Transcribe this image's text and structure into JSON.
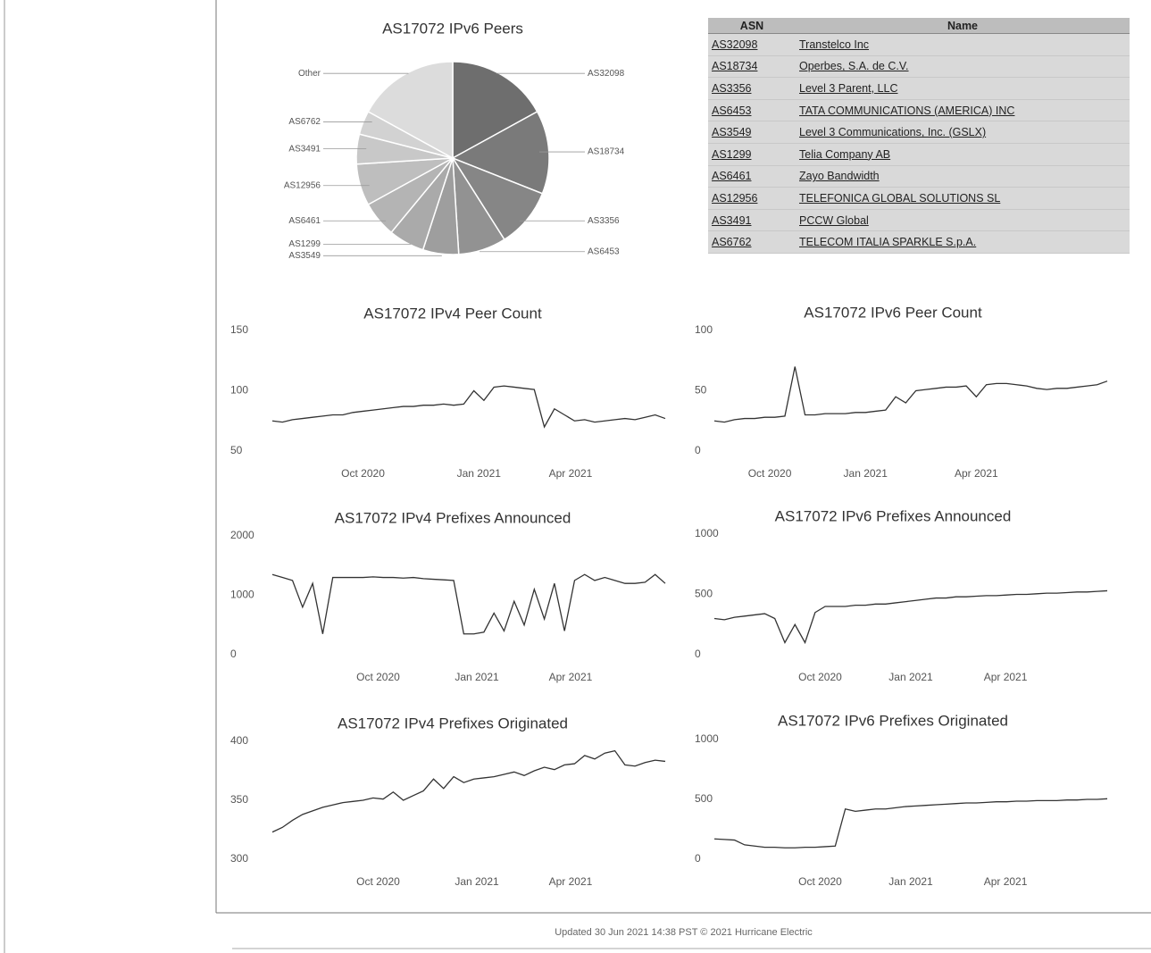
{
  "chart_data": [
    {
      "type": "pie",
      "title": "AS17072 IPv6 Peers",
      "categories": [
        "AS32098",
        "AS18734",
        "AS3356",
        "AS6453",
        "AS3549",
        "AS1299",
        "AS6461",
        "AS12956",
        "AS3491",
        "AS6762",
        "Other"
      ],
      "values": [
        17,
        14,
        10,
        8,
        6,
        6,
        6,
        7,
        5,
        4,
        17
      ],
      "colors": [
        "#6e6e6e",
        "#7a7a7a",
        "#868686",
        "#929292",
        "#9e9e9e",
        "#aaaaaa",
        "#b4b4b4",
        "#bebebe",
        "#c8c8c8",
        "#d2d2d2",
        "#dcdcdc"
      ]
    },
    {
      "type": "line",
      "title": "AS17072 IPv4 Peer Count",
      "color": "#333333",
      "x": [
        0,
        1,
        2,
        3,
        4,
        5,
        6,
        7,
        8,
        9,
        10,
        11,
        12,
        13,
        14,
        15,
        16,
        17,
        18,
        19,
        20,
        21,
        22,
        23,
        24,
        25,
        26,
        27,
        28,
        29,
        30,
        31,
        32,
        33,
        34,
        35,
        36,
        37,
        38,
        39
      ],
      "values": [
        75,
        74,
        76,
        77,
        78,
        79,
        80,
        80,
        82,
        83,
        84,
        85,
        86,
        87,
        87,
        88,
        88,
        89,
        88,
        89,
        100,
        92,
        103,
        104,
        103,
        102,
        101,
        70,
        85,
        80,
        75,
        76,
        74,
        75,
        76,
        77,
        76,
        78,
        80,
        77
      ],
      "xlim": [
        0,
        39
      ],
      "xticks": [
        {
          "value": 9,
          "label": "Oct 2020"
        },
        {
          "value": 20.5,
          "label": "Jan 2021"
        },
        {
          "value": 29.6,
          "label": "Apr 2021"
        }
      ],
      "ylim": [
        50,
        150
      ],
      "yticks": [
        50,
        100,
        150
      ]
    },
    {
      "type": "line",
      "title": "AS17072 IPv6 Peer Count",
      "color": "#333333",
      "x": [
        0,
        1,
        2,
        3,
        4,
        5,
        6,
        7,
        8,
        9,
        10,
        11,
        12,
        13,
        14,
        15,
        16,
        17,
        18,
        19,
        20,
        21,
        22,
        23,
        24,
        25,
        26,
        27,
        28,
        29,
        30,
        31,
        32,
        33,
        34,
        35,
        36,
        37,
        38,
        39
      ],
      "values": [
        25,
        24,
        26,
        27,
        27,
        28,
        28,
        29,
        70,
        30,
        30,
        31,
        31,
        31,
        32,
        32,
        33,
        34,
        45,
        40,
        50,
        51,
        52,
        53,
        53,
        54,
        45,
        55,
        56,
        56,
        55,
        54,
        52,
        51,
        52,
        52,
        53,
        54,
        55,
        58
      ],
      "xlim": [
        0,
        39
      ],
      "xticks": [
        {
          "value": 5.5,
          "label": "Oct 2020"
        },
        {
          "value": 15,
          "label": "Jan 2021"
        },
        {
          "value": 26,
          "label": "Apr 2021"
        }
      ],
      "ylim": [
        0,
        100
      ],
      "yticks": [
        0,
        50,
        100
      ]
    },
    {
      "type": "line",
      "title": "AS17072 IPv4 Prefixes Announced",
      "color": "#333333",
      "x": [
        0,
        1,
        2,
        3,
        4,
        5,
        6,
        7,
        8,
        9,
        10,
        11,
        12,
        13,
        14,
        15,
        16,
        17,
        18,
        19,
        20,
        21,
        22,
        23,
        24,
        25,
        26,
        27,
        28,
        29,
        30,
        31,
        32,
        33,
        34,
        35,
        36,
        37,
        38,
        39
      ],
      "values": [
        1350,
        1300,
        1250,
        800,
        1200,
        350,
        1300,
        1300,
        1300,
        1300,
        1310,
        1300,
        1300,
        1290,
        1300,
        1280,
        1270,
        1260,
        1250,
        350,
        350,
        380,
        700,
        400,
        900,
        500,
        1100,
        600,
        1200,
        400,
        1250,
        1350,
        1250,
        1300,
        1250,
        1200,
        1200,
        1220,
        1350,
        1200
      ],
      "xlim": [
        0,
        39
      ],
      "xticks": [
        {
          "value": 10.5,
          "label": "Oct 2020"
        },
        {
          "value": 20.3,
          "label": "Jan 2021"
        },
        {
          "value": 29.6,
          "label": "Apr 2021"
        }
      ],
      "ylim": [
        0,
        2000
      ],
      "yticks": [
        0,
        1000,
        2000
      ]
    },
    {
      "type": "line",
      "title": "AS17072 IPv6 Prefixes Announced",
      "color": "#333333",
      "x": [
        0,
        1,
        2,
        3,
        4,
        5,
        6,
        7,
        8,
        9,
        10,
        11,
        12,
        13,
        14,
        15,
        16,
        17,
        18,
        19,
        20,
        21,
        22,
        23,
        24,
        25,
        26,
        27,
        28,
        29,
        30,
        31,
        32,
        33,
        34,
        35,
        36,
        37,
        38,
        39
      ],
      "values": [
        300,
        290,
        310,
        320,
        330,
        340,
        300,
        100,
        250,
        100,
        350,
        400,
        400,
        400,
        410,
        410,
        420,
        420,
        430,
        440,
        450,
        460,
        470,
        470,
        480,
        480,
        485,
        490,
        490,
        495,
        500,
        500,
        505,
        510,
        510,
        515,
        520,
        520,
        525,
        530
      ],
      "xlim": [
        0,
        39
      ],
      "xticks": [
        {
          "value": 10.5,
          "label": "Oct 2020"
        },
        {
          "value": 19.5,
          "label": "Jan 2021"
        },
        {
          "value": 28.9,
          "label": "Apr 2021"
        }
      ],
      "ylim": [
        0,
        1000
      ],
      "yticks": [
        0,
        500,
        1000
      ]
    },
    {
      "type": "line",
      "title": "AS17072 IPv4 Prefixes Originated",
      "color": "#333333",
      "x": [
        0,
        1,
        2,
        3,
        4,
        5,
        6,
        7,
        8,
        9,
        10,
        11,
        12,
        13,
        14,
        15,
        16,
        17,
        18,
        19,
        20,
        21,
        22,
        23,
        24,
        25,
        26,
        27,
        28,
        29,
        30,
        31,
        32,
        33,
        34,
        35,
        36,
        37,
        38,
        39
      ],
      "values": [
        323,
        327,
        333,
        338,
        341,
        344,
        346,
        348,
        349,
        350,
        352,
        351,
        357,
        350,
        354,
        358,
        368,
        360,
        370,
        365,
        368,
        369,
        370,
        372,
        374,
        371,
        375,
        378,
        376,
        380,
        381,
        388,
        385,
        390,
        392,
        380,
        379,
        382,
        384,
        383
      ],
      "xlim": [
        0,
        39
      ],
      "xticks": [
        {
          "value": 10.5,
          "label": "Oct 2020"
        },
        {
          "value": 20.3,
          "label": "Jan 2021"
        },
        {
          "value": 29.6,
          "label": "Apr 2021"
        }
      ],
      "ylim": [
        300,
        400
      ],
      "yticks": [
        300,
        350,
        400
      ]
    },
    {
      "type": "line",
      "title": "AS17072 IPv6 Prefixes Originated",
      "color": "#333333",
      "x": [
        0,
        1,
        2,
        3,
        4,
        5,
        6,
        7,
        8,
        9,
        10,
        11,
        12,
        13,
        14,
        15,
        16,
        17,
        18,
        19,
        20,
        21,
        22,
        23,
        24,
        25,
        26,
        27,
        28,
        29,
        30,
        31,
        32,
        33,
        34,
        35,
        36,
        37,
        38,
        39
      ],
      "values": [
        170,
        165,
        160,
        120,
        110,
        100,
        100,
        95,
        95,
        100,
        100,
        105,
        110,
        420,
        400,
        410,
        420,
        420,
        430,
        440,
        445,
        450,
        455,
        460,
        465,
        470,
        470,
        475,
        480,
        480,
        485,
        485,
        490,
        490,
        490,
        495,
        495,
        500,
        500,
        505
      ],
      "xlim": [
        0,
        39
      ],
      "xticks": [
        {
          "value": 10.5,
          "label": "Oct 2020"
        },
        {
          "value": 19.5,
          "label": "Jan 2021"
        },
        {
          "value": 28.9,
          "label": "Apr 2021"
        }
      ],
      "ylim": [
        0,
        1000
      ],
      "yticks": [
        0,
        500,
        1000
      ]
    }
  ],
  "table": {
    "header": [
      "ASN",
      "Name"
    ],
    "rows": [
      [
        "AS32098",
        "Transtelco Inc"
      ],
      [
        "AS18734",
        "Operbes, S.A. de C.V."
      ],
      [
        "AS3356",
        "Level 3 Parent, LLC"
      ],
      [
        "AS6453",
        "TATA COMMUNICATIONS (AMERICA) INC"
      ],
      [
        "AS3549",
        "Level 3 Communications, Inc. (GSLX)"
      ],
      [
        "AS1299",
        "Telia Company AB"
      ],
      [
        "AS6461",
        "Zayo Bandwidth"
      ],
      [
        "AS12956",
        "TELEFONICA GLOBAL SOLUTIONS SL"
      ],
      [
        "AS3491",
        "PCCW Global"
      ],
      [
        "AS6762",
        "TELECOM ITALIA SPARKLE S.p.A."
      ]
    ]
  },
  "footer": "Updated 30 Jun 2021 14:38 PST © 2021 Hurricane Electric"
}
